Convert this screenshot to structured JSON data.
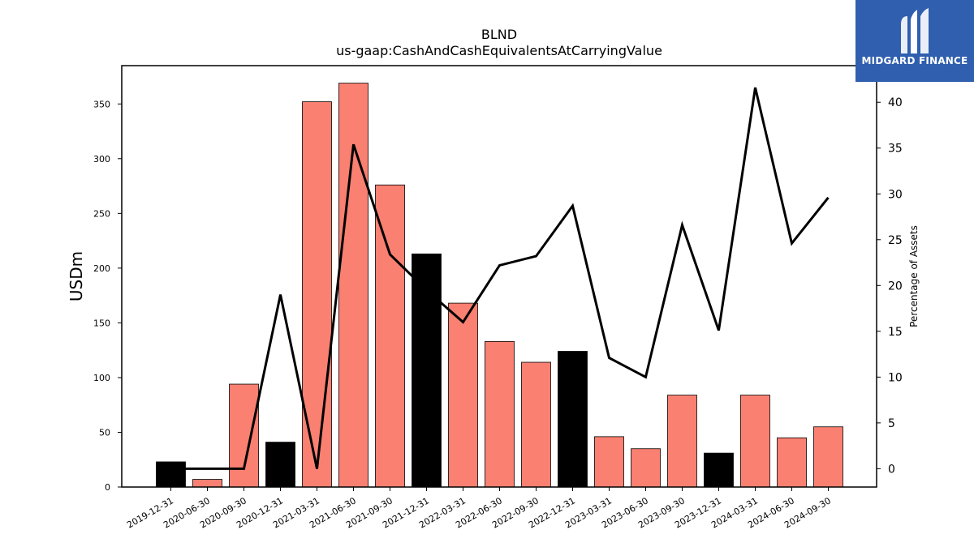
{
  "chart_data": {
    "type": "bar",
    "title": "BLND",
    "subtitle": "us-gaap:CashAndCashEquivalentsAtCarryingValue",
    "ylabel": "USDm",
    "ylabel_right": "Percentage of Assets",
    "ylim": [
      0,
      385
    ],
    "ylim_right": [
      -2,
      44
    ],
    "yticks": [
      0,
      50,
      100,
      150,
      200,
      250,
      300,
      350
    ],
    "yticks_right": [
      0,
      5,
      10,
      15,
      20,
      25,
      30,
      35,
      40
    ],
    "categories": [
      "2019-12-31",
      "2020-06-30",
      "2020-09-30",
      "2020-12-31",
      "2021-03-31",
      "2021-06-30",
      "2021-09-30",
      "2021-12-31",
      "2022-03-31",
      "2022-06-30",
      "2022-09-30",
      "2022-12-31",
      "2023-03-31",
      "2023-06-30",
      "2023-09-30",
      "2023-12-31",
      "2024-03-31",
      "2024-06-30",
      "2024-09-30"
    ],
    "series": [
      {
        "type": "bar",
        "values": [
          23,
          7,
          94,
          41,
          352,
          369,
          276,
          213,
          168,
          133,
          114,
          124,
          46,
          35,
          84,
          31,
          84,
          45,
          55
        ],
        "annual_flags": [
          true,
          false,
          false,
          true,
          false,
          false,
          false,
          true,
          false,
          false,
          false,
          true,
          false,
          false,
          false,
          true,
          false,
          false,
          false
        ]
      },
      {
        "type": "line",
        "axis": "right",
        "values": [
          0,
          0,
          0,
          19,
          0,
          35.4,
          23.4,
          19.5,
          16,
          22.2,
          23.2,
          28.7,
          12.1,
          10,
          26.6,
          15.1,
          41.6,
          24.6,
          29.6
        ]
      }
    ],
    "colors": {
      "annual_bar": "#000000",
      "quarter_bar": "#fa8072",
      "line": "#000000"
    },
    "grid": false,
    "legend": "none"
  },
  "logo": {
    "text": "MIDGARD FINANCE",
    "background": "#2f5fae",
    "icon": "midgard-logo-icon"
  }
}
